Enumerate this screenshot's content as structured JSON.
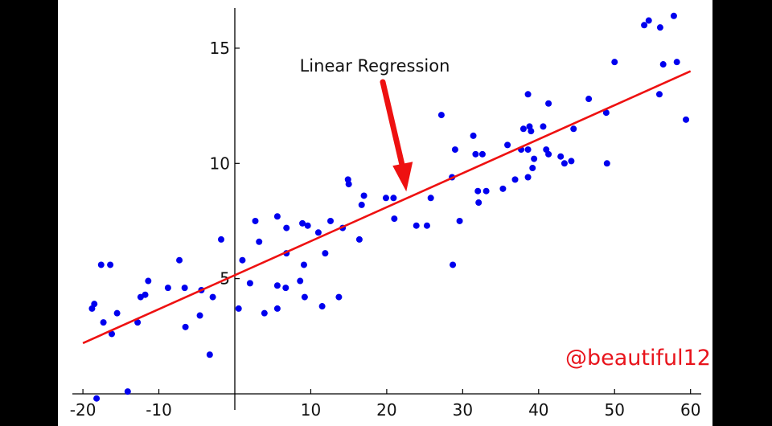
{
  "chart_data": {
    "type": "scatter",
    "title": "",
    "xlabel": "",
    "ylabel": "",
    "xlim": [
      -20,
      62
    ],
    "ylim": [
      0,
      17
    ],
    "x_ticks": [
      "-20",
      "-10",
      "10",
      "20",
      "30",
      "40",
      "50",
      "60"
    ],
    "x_tick_values": [
      -20,
      -10,
      10,
      20,
      30,
      40,
      50,
      60
    ],
    "y_ticks": [
      "5",
      "10",
      "15"
    ],
    "y_tick_values": [
      5,
      10,
      15
    ],
    "grid": false,
    "point_color": "#0000ee",
    "line_color": "#ee1111",
    "arrow_color": "#ee1111",
    "regression_line": {
      "x": [
        -20,
        60
      ],
      "y": [
        2.2,
        14.0
      ]
    },
    "annotation": {
      "text": "Linear Regression",
      "points_to": {
        "x": 23,
        "y": 8.5
      }
    },
    "points": [
      [
        -18.8,
        3.7
      ],
      [
        -18.5,
        3.9
      ],
      [
        -17.6,
        5.6
      ],
      [
        -17.3,
        3.1
      ],
      [
        -16.4,
        5.6
      ],
      [
        -16.2,
        2.6
      ],
      [
        -15.5,
        3.5
      ],
      [
        -12.8,
        3.1
      ],
      [
        -12.4,
        4.2
      ],
      [
        -11.8,
        4.3
      ],
      [
        -11.4,
        4.9
      ],
      [
        -8.8,
        4.6
      ],
      [
        -7.3,
        5.8
      ],
      [
        -6.6,
        4.6
      ],
      [
        -6.5,
        2.9
      ],
      [
        -4.6,
        3.4
      ],
      [
        -4.4,
        4.5
      ],
      [
        -3.3,
        1.7
      ],
      [
        -2.9,
        4.2
      ],
      [
        -1.8,
        6.7
      ],
      [
        0.5,
        3.7
      ],
      [
        1.0,
        5.8
      ],
      [
        2.0,
        4.8
      ],
      [
        2.7,
        7.5
      ],
      [
        3.2,
        6.6
      ],
      [
        3.9,
        3.5
      ],
      [
        5.6,
        7.7
      ],
      [
        5.6,
        3.7
      ],
      [
        5.6,
        4.7
      ],
      [
        6.7,
        4.6
      ],
      [
        6.8,
        6.1
      ],
      [
        6.8,
        7.2
      ],
      [
        8.6,
        4.9
      ],
      [
        8.9,
        7.4
      ],
      [
        9.1,
        5.6
      ],
      [
        9.2,
        4.2
      ],
      [
        9.6,
        7.3
      ],
      [
        11.0,
        7.0
      ],
      [
        11.5,
        3.8
      ],
      [
        11.9,
        6.1
      ],
      [
        12.6,
        7.5
      ],
      [
        13.7,
        4.2
      ],
      [
        14.2,
        7.2
      ],
      [
        14.9,
        9.3
      ],
      [
        15.0,
        9.1
      ],
      [
        16.4,
        6.7
      ],
      [
        16.7,
        8.2
      ],
      [
        17.0,
        8.6
      ],
      [
        19.9,
        8.5
      ],
      [
        20.9,
        8.5
      ],
      [
        21.0,
        7.6
      ],
      [
        23.9,
        7.3
      ],
      [
        25.3,
        7.3
      ],
      [
        25.8,
        8.5
      ],
      [
        27.2,
        12.1
      ],
      [
        28.6,
        9.4
      ],
      [
        28.7,
        5.6
      ],
      [
        29.0,
        10.6
      ],
      [
        29.6,
        7.5
      ],
      [
        31.4,
        11.2
      ],
      [
        31.7,
        10.4
      ],
      [
        32.0,
        8.8
      ],
      [
        32.1,
        8.3
      ],
      [
        32.6,
        10.4
      ],
      [
        33.1,
        8.8
      ],
      [
        35.3,
        8.9
      ],
      [
        35.9,
        10.8
      ],
      [
        36.9,
        9.3
      ],
      [
        37.7,
        10.6
      ],
      [
        38.0,
        11.5
      ],
      [
        38.6,
        13.0
      ],
      [
        38.6,
        10.6
      ],
      [
        38.6,
        9.4
      ],
      [
        38.8,
        11.6
      ],
      [
        39.0,
        11.4
      ],
      [
        39.2,
        9.8
      ],
      [
        39.4,
        10.2
      ],
      [
        40.6,
        11.6
      ],
      [
        41.0,
        10.6
      ],
      [
        41.3,
        12.6
      ],
      [
        41.3,
        10.4
      ],
      [
        42.9,
        10.3
      ],
      [
        43.4,
        10.0
      ],
      [
        44.3,
        10.1
      ],
      [
        44.6,
        11.5
      ],
      [
        46.6,
        12.8
      ],
      [
        48.9,
        12.2
      ],
      [
        49.0,
        10.0
      ],
      [
        50.0,
        14.4
      ],
      [
        53.9,
        16.0
      ],
      [
        54.5,
        16.2
      ],
      [
        55.9,
        13.0
      ],
      [
        56.0,
        15.9
      ],
      [
        56.4,
        14.3
      ],
      [
        57.8,
        16.4
      ],
      [
        58.2,
        14.4
      ],
      [
        59.4,
        11.9
      ],
      [
        -18.2,
        -0.2
      ],
      [
        -14.1,
        0.1
      ]
    ]
  },
  "watermark_text": "@beautiful12"
}
